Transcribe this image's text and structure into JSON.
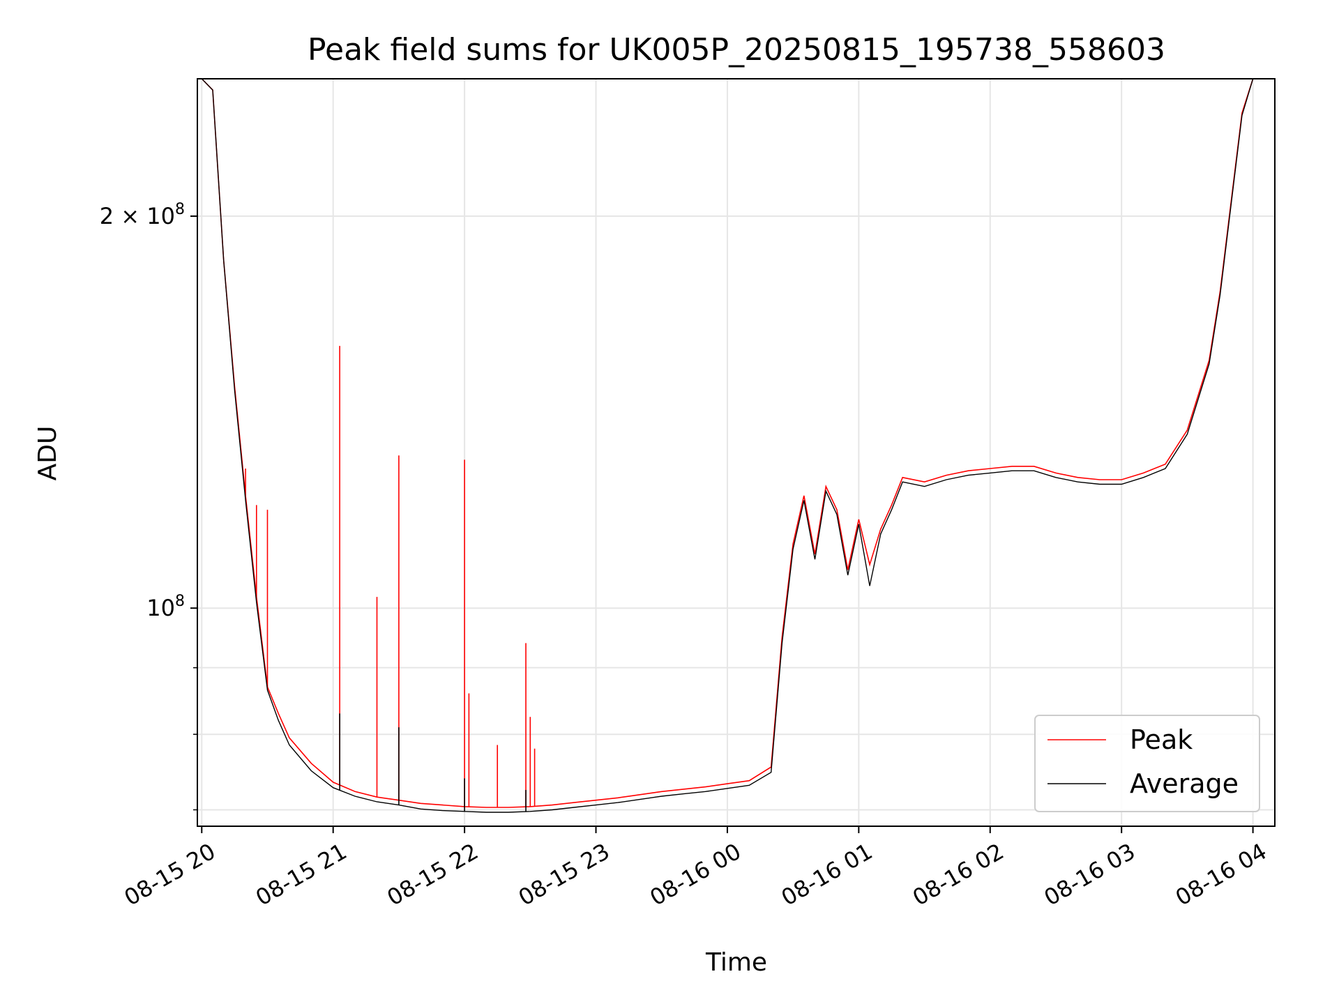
{
  "chart_data": {
    "type": "line",
    "title": "Peak field sums for UK005P_20250815_195738_558603",
    "xlabel": "Time",
    "ylabel": "ADU",
    "yscale": "log",
    "grid": true,
    "legend_placement": "lower-right",
    "xlim": [
      "2025-08-15 19:58",
      "2025-08-16 04:10"
    ],
    "ylim": [
      68000000,
      255000000
    ],
    "x_ticks": [
      {
        "label": "08-15 20",
        "value": "2025-08-15 20:00"
      },
      {
        "label": "08-15 21",
        "value": "2025-08-15 21:00"
      },
      {
        "label": "08-15 22",
        "value": "2025-08-15 22:00"
      },
      {
        "label": "08-15 23",
        "value": "2025-08-15 23:00"
      },
      {
        "label": "08-16 00",
        "value": "2025-08-16 00:00"
      },
      {
        "label": "08-16 01",
        "value": "2025-08-16 01:00"
      },
      {
        "label": "08-16 02",
        "value": "2025-08-16 02:00"
      },
      {
        "label": "08-16 03",
        "value": "2025-08-16 03:00"
      },
      {
        "label": "08-16 04",
        "value": "2025-08-16 04:00"
      }
    ],
    "y_ticks_major": [
      {
        "value": 100000000,
        "base": "10",
        "exp": "8",
        "coef": ""
      },
      {
        "value": 200000000,
        "base": "10",
        "exp": "8",
        "coef": "2 × "
      }
    ],
    "y_ticks_minor": [
      70000000,
      80000000,
      90000000
    ],
    "series": [
      {
        "name": "Peak",
        "color": "#ff0000",
        "points": [
          [
            "2025-08-15 20:00",
            255000000
          ],
          [
            "2025-08-15 20:05",
            250000000
          ],
          [
            "2025-08-15 20:10",
            185000000
          ],
          [
            "2025-08-15 20:15",
            148000000
          ],
          [
            "2025-08-15 20:20",
            122000000
          ],
          [
            "2025-08-15 20:25",
            102000000
          ],
          [
            "2025-08-15 20:30",
            87000000
          ],
          [
            "2025-08-15 20:35",
            83000000
          ],
          [
            "2025-08-15 20:40",
            79500000
          ],
          [
            "2025-08-15 20:50",
            76000000
          ],
          [
            "2025-08-15 21:00",
            73500000
          ],
          [
            "2025-08-15 21:10",
            72300000
          ],
          [
            "2025-08-15 21:20",
            71600000
          ],
          [
            "2025-08-15 21:30",
            71200000
          ],
          [
            "2025-08-15 21:40",
            70800000
          ],
          [
            "2025-08-15 21:50",
            70600000
          ],
          [
            "2025-08-15 22:00",
            70400000
          ],
          [
            "2025-08-15 22:10",
            70300000
          ],
          [
            "2025-08-15 22:20",
            70300000
          ],
          [
            "2025-08-15 22:30",
            70400000
          ],
          [
            "2025-08-15 22:40",
            70600000
          ],
          [
            "2025-08-15 22:50",
            70900000
          ],
          [
            "2025-08-15 23:00",
            71200000
          ],
          [
            "2025-08-15 23:10",
            71500000
          ],
          [
            "2025-08-15 23:20",
            71900000
          ],
          [
            "2025-08-15 23:30",
            72300000
          ],
          [
            "2025-08-15 23:40",
            72600000
          ],
          [
            "2025-08-15 23:50",
            72900000
          ],
          [
            "2025-08-16 00:00",
            73300000
          ],
          [
            "2025-08-16 00:10",
            73700000
          ],
          [
            "2025-08-16 00:20",
            75500000
          ],
          [
            "2025-08-16 00:25",
            95000000
          ],
          [
            "2025-08-16 00:30",
            112000000
          ],
          [
            "2025-08-16 00:35",
            122000000
          ],
          [
            "2025-08-16 00:40",
            110000000
          ],
          [
            "2025-08-16 00:45",
            124000000
          ],
          [
            "2025-08-16 00:50",
            119000000
          ],
          [
            "2025-08-16 00:55",
            107000000
          ],
          [
            "2025-08-16 01:00",
            117000000
          ],
          [
            "2025-08-16 01:05",
            108000000
          ],
          [
            "2025-08-16 01:10",
            115000000
          ],
          [
            "2025-08-16 01:15",
            120000000
          ],
          [
            "2025-08-16 01:20",
            126000000
          ],
          [
            "2025-08-16 01:30",
            125000000
          ],
          [
            "2025-08-16 01:40",
            126500000
          ],
          [
            "2025-08-16 01:50",
            127500000
          ],
          [
            "2025-08-16 02:00",
            128000000
          ],
          [
            "2025-08-16 02:10",
            128500000
          ],
          [
            "2025-08-16 02:20",
            128500000
          ],
          [
            "2025-08-16 02:30",
            127000000
          ],
          [
            "2025-08-16 02:40",
            126000000
          ],
          [
            "2025-08-16 02:50",
            125500000
          ],
          [
            "2025-08-16 03:00",
            125500000
          ],
          [
            "2025-08-16 03:10",
            127000000
          ],
          [
            "2025-08-16 03:20",
            129000000
          ],
          [
            "2025-08-16 03:30",
            137000000
          ],
          [
            "2025-08-16 03:40",
            155000000
          ],
          [
            "2025-08-16 03:45",
            175000000
          ],
          [
            "2025-08-16 03:50",
            205000000
          ],
          [
            "2025-08-16 03:55",
            240000000
          ],
          [
            "2025-08-16 04:00",
            255000000
          ],
          [
            "2025-08-16 04:10",
            255000000
          ]
        ],
        "spikes": [
          [
            "2025-08-15 20:20",
            128000000
          ],
          [
            "2025-08-15 20:25",
            120000000
          ],
          [
            "2025-08-15 20:30",
            119000000
          ],
          [
            "2025-08-15 21:03",
            159000000
          ],
          [
            "2025-08-15 21:20",
            102000000
          ],
          [
            "2025-08-15 21:30",
            131000000
          ],
          [
            "2025-08-15 22:00",
            130000000
          ],
          [
            "2025-08-15 22:02",
            86000000
          ],
          [
            "2025-08-15 22:15",
            78500000
          ],
          [
            "2025-08-15 22:28",
            94000000
          ],
          [
            "2025-08-15 22:30",
            82500000
          ],
          [
            "2025-08-15 22:32",
            78000000
          ]
        ]
      },
      {
        "name": "Average",
        "color": "#000000",
        "points": [
          [
            "2025-08-15 20:00",
            255000000
          ],
          [
            "2025-08-15 20:05",
            250000000
          ],
          [
            "2025-08-15 20:10",
            185000000
          ],
          [
            "2025-08-15 20:15",
            147000000
          ],
          [
            "2025-08-15 20:20",
            121000000
          ],
          [
            "2025-08-15 20:25",
            101000000
          ],
          [
            "2025-08-15 20:30",
            86500000
          ],
          [
            "2025-08-15 20:35",
            82000000
          ],
          [
            "2025-08-15 20:40",
            78500000
          ],
          [
            "2025-08-15 20:50",
            75000000
          ],
          [
            "2025-08-15 21:00",
            72800000
          ],
          [
            "2025-08-15 21:10",
            71700000
          ],
          [
            "2025-08-15 21:20",
            71000000
          ],
          [
            "2025-08-15 21:30",
            70600000
          ],
          [
            "2025-08-15 21:40",
            70100000
          ],
          [
            "2025-08-15 21:50",
            69900000
          ],
          [
            "2025-08-15 22:00",
            69800000
          ],
          [
            "2025-08-15 22:10",
            69700000
          ],
          [
            "2025-08-15 22:20",
            69700000
          ],
          [
            "2025-08-15 22:30",
            69800000
          ],
          [
            "2025-08-15 22:40",
            70000000
          ],
          [
            "2025-08-15 22:50",
            70300000
          ],
          [
            "2025-08-15 23:00",
            70600000
          ],
          [
            "2025-08-15 23:10",
            70900000
          ],
          [
            "2025-08-15 23:20",
            71300000
          ],
          [
            "2025-08-15 23:30",
            71700000
          ],
          [
            "2025-08-15 23:40",
            72000000
          ],
          [
            "2025-08-15 23:50",
            72300000
          ],
          [
            "2025-08-16 00:00",
            72700000
          ],
          [
            "2025-08-16 00:10",
            73100000
          ],
          [
            "2025-08-16 00:20",
            74800000
          ],
          [
            "2025-08-16 00:25",
            94000000
          ],
          [
            "2025-08-16 00:30",
            111000000
          ],
          [
            "2025-08-16 00:35",
            121000000
          ],
          [
            "2025-08-16 00:40",
            109000000
          ],
          [
            "2025-08-16 00:45",
            123000000
          ],
          [
            "2025-08-16 00:50",
            118000000
          ],
          [
            "2025-08-16 00:55",
            106000000
          ],
          [
            "2025-08-16 01:00",
            116000000
          ],
          [
            "2025-08-16 01:05",
            104000000
          ],
          [
            "2025-08-16 01:10",
            114000000
          ],
          [
            "2025-08-16 01:15",
            119000000
          ],
          [
            "2025-08-16 01:20",
            125000000
          ],
          [
            "2025-08-16 01:30",
            124000000
          ],
          [
            "2025-08-16 01:40",
            125500000
          ],
          [
            "2025-08-16 01:50",
            126500000
          ],
          [
            "2025-08-16 02:00",
            127000000
          ],
          [
            "2025-08-16 02:10",
            127500000
          ],
          [
            "2025-08-16 02:20",
            127500000
          ],
          [
            "2025-08-16 02:30",
            126000000
          ],
          [
            "2025-08-16 02:40",
            125000000
          ],
          [
            "2025-08-16 02:50",
            124500000
          ],
          [
            "2025-08-16 03:00",
            124500000
          ],
          [
            "2025-08-16 03:10",
            126000000
          ],
          [
            "2025-08-16 03:20",
            128000000
          ],
          [
            "2025-08-16 03:30",
            136000000
          ],
          [
            "2025-08-16 03:40",
            154000000
          ],
          [
            "2025-08-16 03:45",
            174000000
          ],
          [
            "2025-08-16 03:50",
            204000000
          ],
          [
            "2025-08-16 03:55",
            239000000
          ],
          [
            "2025-08-16 04:00",
            255000000
          ],
          [
            "2025-08-16 04:10",
            255000000
          ]
        ],
        "spikes": [
          [
            "2025-08-15 21:03",
            83000000
          ],
          [
            "2025-08-15 21:30",
            81000000
          ],
          [
            "2025-08-15 22:00",
            74000000
          ],
          [
            "2025-08-15 22:28",
            72500000
          ]
        ]
      }
    ]
  }
}
